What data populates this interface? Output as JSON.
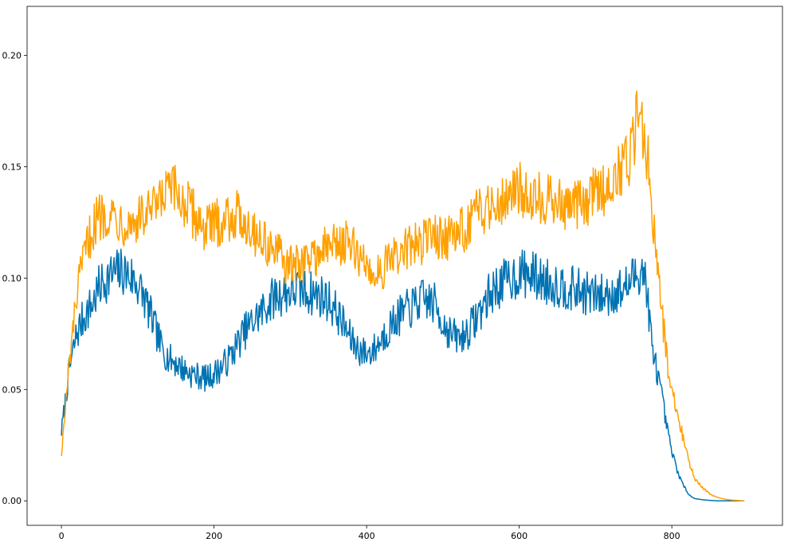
{
  "chart_data": {
    "type": "line",
    "title": "",
    "xlabel": "",
    "ylabel": "",
    "xlim": [
      -45,
      945
    ],
    "ylim": [
      -0.011,
      0.222
    ],
    "grid": false,
    "legend": "none",
    "xticks": [
      0,
      200,
      400,
      600,
      800
    ],
    "xtick_labels": [
      "0",
      "200",
      "400",
      "600",
      "800"
    ],
    "yticks": [
      0.0,
      0.05,
      0.1,
      0.15,
      0.2
    ],
    "ytick_labels": [
      "0.00",
      "0.05",
      "0.10",
      "0.15",
      "0.20"
    ],
    "series": [
      {
        "color": "#0072b2",
        "x": [
          0,
          10,
          20,
          30,
          40,
          50,
          60,
          70,
          80,
          90,
          100,
          110,
          120,
          130,
          140,
          150,
          160,
          170,
          180,
          190,
          200,
          210,
          220,
          230,
          240,
          250,
          260,
          270,
          280,
          290,
          300,
          310,
          320,
          330,
          340,
          350,
          360,
          370,
          380,
          390,
          400,
          410,
          420,
          430,
          440,
          450,
          460,
          470,
          480,
          490,
          500,
          510,
          520,
          530,
          540,
          550,
          560,
          570,
          580,
          590,
          600,
          610,
          620,
          630,
          640,
          650,
          660,
          670,
          680,
          690,
          700,
          710,
          720,
          730,
          740,
          750,
          760,
          765,
          770,
          775,
          780,
          785,
          790,
          795,
          800,
          805,
          810,
          815,
          820,
          825,
          830,
          840,
          850,
          860,
          870,
          880,
          890,
          895
        ],
        "values": [
          0.031,
          0.058,
          0.075,
          0.083,
          0.088,
          0.096,
          0.1,
          0.102,
          0.103,
          0.101,
          0.097,
          0.09,
          0.08,
          0.07,
          0.064,
          0.062,
          0.059,
          0.057,
          0.056,
          0.055,
          0.057,
          0.06,
          0.064,
          0.07,
          0.076,
          0.08,
          0.084,
          0.088,
          0.092,
          0.093,
          0.094,
          0.095,
          0.094,
          0.093,
          0.092,
          0.09,
          0.085,
          0.079,
          0.072,
          0.068,
          0.066,
          0.068,
          0.073,
          0.078,
          0.082,
          0.085,
          0.087,
          0.09,
          0.09,
          0.088,
          0.08,
          0.075,
          0.073,
          0.075,
          0.08,
          0.086,
          0.092,
          0.096,
          0.098,
          0.1,
          0.102,
          0.102,
          0.101,
          0.099,
          0.098,
          0.097,
          0.096,
          0.095,
          0.094,
          0.093,
          0.092,
          0.092,
          0.093,
          0.094,
          0.096,
          0.1,
          0.105,
          0.1,
          0.085,
          0.065,
          0.06,
          0.05,
          0.04,
          0.03,
          0.022,
          0.016,
          0.011,
          0.007,
          0.004,
          0.002,
          0.001,
          0.0005,
          0.0002,
          0.0,
          0.0,
          0.0,
          0.0,
          0.0
        ]
      },
      {
        "color": "#ffa000",
        "x": [
          0,
          10,
          20,
          30,
          40,
          50,
          60,
          70,
          80,
          90,
          100,
          110,
          120,
          130,
          140,
          150,
          160,
          170,
          180,
          190,
          200,
          210,
          220,
          230,
          240,
          250,
          260,
          270,
          280,
          290,
          300,
          310,
          320,
          330,
          340,
          350,
          360,
          370,
          380,
          390,
          400,
          410,
          420,
          430,
          440,
          450,
          460,
          470,
          480,
          490,
          500,
          510,
          520,
          530,
          540,
          550,
          560,
          570,
          580,
          590,
          600,
          610,
          620,
          630,
          640,
          650,
          660,
          670,
          680,
          690,
          700,
          710,
          720,
          730,
          740,
          750,
          755,
          760,
          765,
          770,
          775,
          780,
          785,
          790,
          795,
          800,
          805,
          810,
          815,
          820,
          825,
          830,
          840,
          850,
          860,
          870,
          880,
          890,
          895
        ],
        "values": [
          0.021,
          0.06,
          0.092,
          0.11,
          0.122,
          0.128,
          0.13,
          0.128,
          0.126,
          0.125,
          0.126,
          0.128,
          0.13,
          0.133,
          0.14,
          0.138,
          0.134,
          0.13,
          0.126,
          0.122,
          0.124,
          0.126,
          0.128,
          0.128,
          0.126,
          0.122,
          0.118,
          0.115,
          0.112,
          0.108,
          0.105,
          0.106,
          0.108,
          0.11,
          0.112,
          0.114,
          0.116,
          0.116,
          0.114,
          0.11,
          0.105,
          0.102,
          0.104,
          0.107,
          0.11,
          0.112,
          0.114,
          0.116,
          0.118,
          0.12,
          0.118,
          0.118,
          0.12,
          0.123,
          0.127,
          0.13,
          0.133,
          0.135,
          0.137,
          0.139,
          0.14,
          0.139,
          0.137,
          0.136,
          0.135,
          0.134,
          0.133,
          0.132,
          0.133,
          0.135,
          0.138,
          0.14,
          0.143,
          0.148,
          0.152,
          0.16,
          0.18,
          0.17,
          0.16,
          0.15,
          0.13,
          0.115,
          0.09,
          0.075,
          0.06,
          0.05,
          0.043,
          0.035,
          0.028,
          0.021,
          0.015,
          0.01,
          0.006,
          0.003,
          0.0015,
          0.0007,
          0.0003,
          0.0001,
          0.0
        ]
      }
    ]
  }
}
